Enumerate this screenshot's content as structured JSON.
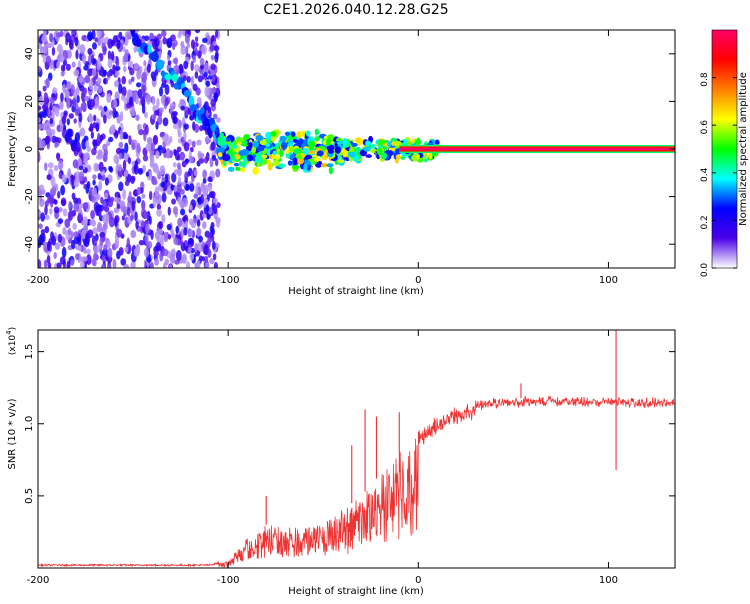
{
  "chart_data": [
    {
      "type": "heatmap",
      "title": "C2E1.2026.040.12.28.G25",
      "xlabel": "Height of straight line (km)",
      "ylabel": "Frequency (Hz)",
      "xlim": [
        -200,
        135
      ],
      "ylim": [
        -50,
        50
      ],
      "xticks": [
        -200,
        -100,
        0,
        100
      ],
      "yticks": [
        -40,
        -20,
        0,
        20,
        40
      ],
      "colorbar": {
        "label": "Normalized spectral amplitude",
        "range": [
          0,
          1
        ],
        "ticks": [
          "0.0",
          "0.2",
          "0.4",
          "0.6",
          "0.8"
        ],
        "colors": [
          "#ffffff",
          "#4b00e8",
          "#0000ff",
          "#00ffff",
          "#00ff00",
          "#ffff00",
          "#ff7f00",
          "#ff0000",
          "#ff0066"
        ]
      },
      "regions": [
        {
          "name": "noise",
          "x": [
            -200,
            -105
          ],
          "frequency_range": [
            -50,
            50
          ],
          "amplitude": [
            0.05,
            0.25
          ]
        },
        {
          "name": "transition",
          "x": [
            -150,
            -95
          ],
          "frequency_path": [
            [
              -150,
              48
            ],
            [
              -130,
              30
            ],
            [
              -115,
              15
            ],
            [
              -105,
              5
            ],
            [
              -100,
              0
            ]
          ],
          "amplitude": [
            0.2,
            0.4
          ]
        },
        {
          "name": "cluster",
          "x": [
            -105,
            10
          ],
          "frequency_range": [
            -10,
            8
          ],
          "amplitude": [
            0.2,
            0.7
          ]
        },
        {
          "name": "steady-line",
          "x": [
            -10,
            135
          ],
          "frequency": 0,
          "amplitude": [
            0.85,
            1.0
          ]
        }
      ]
    },
    {
      "type": "line",
      "series_name": "SNR",
      "color": "#ee3333",
      "xlabel": "Height of straight line (km)",
      "ylabel": "SNR (10 * v/v)",
      "y_multiplier": "(x10",
      "y_multiplier_exp": "4",
      "y_multiplier_close": ")",
      "xlim": [
        -200,
        135
      ],
      "ylim": [
        0,
        1.65
      ],
      "xticks": [
        -200,
        -100,
        0,
        100
      ],
      "yticks": [
        "0.5",
        "1.0",
        "1.5"
      ],
      "envelope": [
        [
          -200,
          0.02
        ],
        [
          -110,
          0.02
        ],
        [
          -100,
          0.05
        ],
        [
          -90,
          0.2
        ],
        [
          -80,
          0.3
        ],
        [
          -70,
          0.3
        ],
        [
          -60,
          0.28
        ],
        [
          -50,
          0.3
        ],
        [
          -40,
          0.4
        ],
        [
          -30,
          0.5
        ],
        [
          -20,
          0.65
        ],
        [
          -10,
          0.8
        ],
        [
          0,
          0.95
        ],
        [
          10,
          1.05
        ],
        [
          20,
          1.12
        ],
        [
          30,
          1.15
        ],
        [
          40,
          1.17
        ],
        [
          60,
          1.18
        ],
        [
          135,
          1.17
        ]
      ],
      "spikes": [
        {
          "x": -80,
          "y": 0.5
        },
        {
          "x": -35,
          "y": 0.85
        },
        {
          "x": -28,
          "y": 1.1
        },
        {
          "x": -22,
          "y": 1.05
        },
        {
          "x": -10,
          "y": 1.08
        },
        {
          "x": 54,
          "y": 1.28
        },
        {
          "x": 104,
          "y": 1.65
        },
        {
          "x": 104,
          "y": 0.68
        }
      ]
    }
  ]
}
